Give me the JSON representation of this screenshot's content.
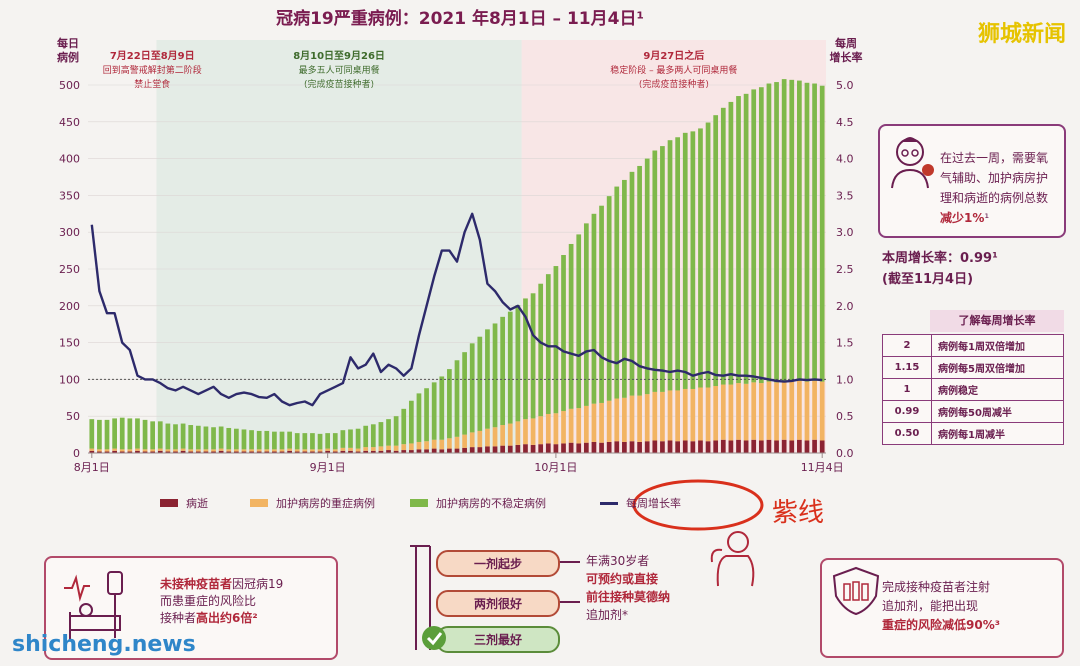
{
  "header": {
    "title": "冠病19严重病例：2021 年8月1日 – 11月4日¹",
    "watermark_top": "狮城新闻",
    "watermark_bottom": "shicheng.news"
  },
  "colors": {
    "deaths": "#8b2332",
    "icu": "#f2b463",
    "unstable": "#7fb84a",
    "growth": "#2d2a6b",
    "period2_bg": "#e4ece6",
    "period3_bg": "#f8e6e6",
    "accent": "#6a1e4f",
    "red": "#b0283b",
    "annotation": "#d9301c"
  },
  "chart_data": {
    "type": "bar",
    "ylabel_left": "每日病例",
    "ylabel_right": "每周增长率",
    "ylim_left": [
      0,
      500
    ],
    "ylim_right": [
      0,
      5.0
    ],
    "yticks_left": [
      "0",
      "50",
      "100",
      "150",
      "200",
      "250",
      "300",
      "350",
      "400",
      "450",
      "500"
    ],
    "yticks_right": [
      "0.0",
      "0.5",
      "1.0",
      "1.5",
      "2.0",
      "2.5",
      "3.0",
      "3.5",
      "4.0",
      "4.5",
      "5.0"
    ],
    "xtick_labels": [
      "8月1日",
      "9月1日",
      "10月1日",
      "11月4日"
    ],
    "periods": [
      {
        "label": "7月22日至8月9日",
        "desc": "回到高警戒解封第二阶段\n禁止堂食"
      },
      {
        "label": "8月10日至9月26日",
        "desc": "最多五人可同桌用餐\n(完成疫苗接种者)"
      },
      {
        "label": "9月27日之后",
        "desc": "稳定阶段 – 最多两人可同桌用餐\n(完成疫苗接种者)"
      }
    ],
    "series": [
      {
        "name": "病逝",
        "type": "bar",
        "values": [
          3,
          2,
          2,
          3,
          2,
          2,
          3,
          2,
          2,
          3,
          2,
          2,
          3,
          2,
          2,
          2,
          2,
          3,
          2,
          2,
          2,
          2,
          2,
          2,
          2,
          2,
          3,
          2,
          2,
          2,
          2,
          3,
          2,
          3,
          3,
          2,
          3,
          3,
          3,
          4,
          3,
          4,
          4,
          5,
          5,
          6,
          5,
          6,
          6,
          7,
          8,
          8,
          9,
          9,
          10,
          10,
          11,
          12,
          11,
          12,
          13,
          12,
          13,
          14,
          13,
          14,
          15,
          14,
          15,
          16,
          15,
          16,
          15,
          16,
          17,
          16,
          17,
          16,
          17,
          16,
          17,
          16,
          17,
          18,
          17,
          18,
          17,
          18,
          17,
          18,
          17,
          18,
          17,
          18,
          17,
          18,
          17
        ]
      },
      {
        "name": "加护病房的重症病例",
        "type": "bar",
        "values": [
          3,
          3,
          3,
          3,
          3,
          3,
          3,
          3,
          3,
          3,
          3,
          3,
          3,
          3,
          3,
          3,
          3,
          3,
          3,
          3,
          3,
          3,
          3,
          3,
          3,
          3,
          3,
          3,
          3,
          3,
          3,
          3,
          3,
          4,
          4,
          4,
          5,
          5,
          6,
          6,
          7,
          8,
          9,
          10,
          11,
          12,
          13,
          14,
          16,
          18,
          20,
          22,
          24,
          26,
          28,
          30,
          32,
          34,
          36,
          38,
          40,
          42,
          44,
          46,
          48,
          50,
          52,
          54,
          56,
          58,
          60,
          62,
          63,
          64,
          66,
          67,
          68,
          69,
          70,
          71,
          72,
          73,
          74,
          75,
          76,
          77,
          77,
          78,
          78,
          79,
          79,
          80,
          80,
          80,
          80,
          80,
          80
        ]
      },
      {
        "name": "加护病房的不稳定病例",
        "type": "bar",
        "values": [
          40,
          40,
          40,
          41,
          43,
          42,
          41,
          40,
          38,
          37,
          35,
          34,
          34,
          33,
          32,
          31,
          30,
          30,
          29,
          28,
          27,
          26,
          25,
          25,
          24,
          24,
          23,
          22,
          22,
          22,
          21,
          21,
          22,
          24,
          25,
          27,
          29,
          31,
          33,
          36,
          40,
          48,
          58,
          66,
          72,
          78,
          86,
          94,
          104,
          112,
          121,
          128,
          135,
          141,
          147,
          152,
          158,
          164,
          170,
          180,
          190,
          200,
          212,
          224,
          236,
          248,
          258,
          268,
          278,
          288,
          296,
          304,
          312,
          320,
          328,
          334,
          340,
          344,
          348,
          350,
          352,
          360,
          368,
          376,
          384,
          390,
          394,
          398,
          402,
          405,
          408,
          410,
          410,
          408,
          406,
          404,
          402
        ]
      },
      {
        "name": "每周增长率",
        "type": "line",
        "values": [
          3.1,
          2.2,
          1.9,
          1.9,
          1.5,
          1.4,
          1.05,
          1.0,
          1.0,
          0.95,
          0.88,
          0.85,
          0.9,
          0.85,
          0.8,
          0.85,
          0.9,
          0.8,
          0.75,
          0.8,
          0.82,
          0.8,
          0.76,
          0.75,
          0.8,
          0.7,
          0.65,
          0.68,
          0.7,
          0.65,
          0.8,
          0.85,
          0.9,
          0.95,
          1.3,
          1.15,
          1.2,
          1.35,
          1.1,
          1.2,
          1.15,
          1.05,
          1.15,
          1.6,
          2.0,
          2.4,
          2.75,
          2.75,
          2.6,
          3.0,
          3.25,
          2.9,
          2.3,
          2.2,
          2.05,
          1.95,
          2.0,
          1.85,
          1.6,
          1.5,
          1.45,
          1.45,
          1.38,
          1.35,
          1.32,
          1.38,
          1.4,
          1.3,
          1.25,
          1.22,
          1.28,
          1.25,
          1.18,
          1.15,
          1.13,
          1.12,
          1.1,
          1.12,
          1.1,
          1.05,
          1.08,
          1.1,
          1.06,
          1.05,
          1.07,
          1.05,
          1.05,
          1.04,
          1.02,
          1.0,
          0.98,
          0.97,
          0.98,
          1.0,
          0.99,
          1.0,
          0.99
        ]
      }
    ],
    "reference_line": 1.0
  },
  "legend": [
    {
      "name": "病逝",
      "color": "#8b2332"
    },
    {
      "name": "加护病房的重症病例",
      "color": "#f2b463"
    },
    {
      "name": "加护病房的不稳定病例",
      "color": "#7fb84a"
    },
    {
      "name": "每周增长率",
      "color": "#2d2a6b"
    }
  ],
  "annotation": {
    "label": "紫线"
  },
  "side_panel": {
    "summary": "在过去一周，需要氧气辅助、加护病房护理和病逝的病例总数",
    "summary_hl": "减少1%",
    "summary_sup": "¹",
    "weekly_growth_line1": "本周增长率：0.99¹",
    "weekly_growth_line2": "(截至11月4日)",
    "table_title": "了解每周增长率",
    "table_rows": [
      {
        "rate": "2",
        "meaning": "病例每1周双倍增加"
      },
      {
        "rate": "1.15",
        "meaning": "病例每5周双倍增加"
      },
      {
        "rate": "1",
        "meaning": "病例稳定"
      },
      {
        "rate": "0.99",
        "meaning": "病例每50周减半"
      },
      {
        "rate": "0.50",
        "meaning": "病例每1周减半"
      }
    ]
  },
  "bottom": {
    "box1_a": "未接种疫苗者",
    "box1_b": "因冠病19",
    "box1_c": "而患重症的风险比",
    "box1_d": "接种者",
    "box1_e": "高出约6倍²",
    "dose1": "一剂起步",
    "dose2": "两剂很好",
    "dose3": "三剂最好",
    "box2_a": "年满30岁者",
    "box2_b": "可预约或直接",
    "box2_c": "前往接种莫德纳",
    "box2_d": "追加剂*",
    "box3_a": "完成接种疫苗者注射",
    "box3_b": "追加剂，能把出现",
    "box3_c": "重症的风险减低90%³"
  }
}
